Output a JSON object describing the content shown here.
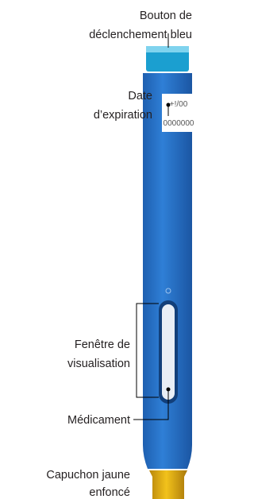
{
  "labels": {
    "trigger_button": [
      "Bouton de",
      "déclenchement bleu"
    ],
    "expiry_date": [
      "Date",
      "d’expiration"
    ],
    "viewing_window": [
      "Fenêtre de",
      "visualisation"
    ],
    "medication": [
      "Médicament"
    ],
    "yellow_cap": [
      "Capuchon jaune",
      "enfoncé"
    ]
  },
  "pen_label": {
    "lines": [
      "+!/00",
      "0000000"
    ]
  }
}
